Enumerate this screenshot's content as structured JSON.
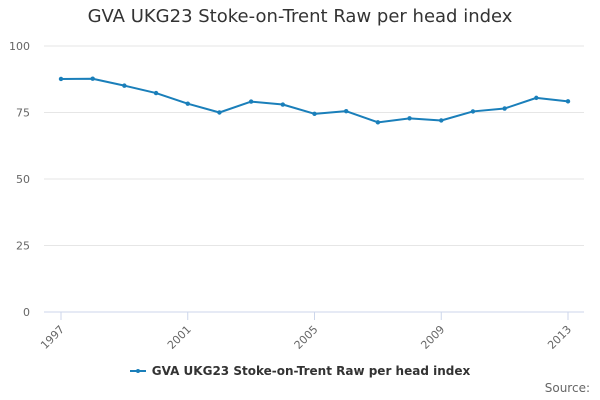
{
  "chart_data": {
    "type": "line",
    "title": "GVA UKG23 Stoke-on-Trent Raw per head index",
    "xlabel": "",
    "ylabel": "",
    "x": [
      1997,
      1998,
      1999,
      2000,
      2001,
      2002,
      2003,
      2004,
      2005,
      2006,
      2007,
      2008,
      2009,
      2010,
      2011,
      2012,
      2013
    ],
    "x_tick_labels": [
      "1997",
      "2001",
      "2005",
      "2009",
      "2013"
    ],
    "y_tick_labels": [
      "0",
      "25",
      "50",
      "75",
      "100"
    ],
    "ylim": [
      0,
      100
    ],
    "grid": true,
    "legend_position": "bottom",
    "series": [
      {
        "name": "GVA UKG23 Stoke-on-Trent Raw per head index",
        "color": "#1a7fba",
        "values": [
          87.6,
          87.7,
          85.1,
          82.3,
          78.3,
          75.0,
          79.1,
          78.0,
          74.5,
          75.5,
          71.3,
          72.8,
          72.0,
          75.4,
          76.5,
          80.5,
          79.2
        ]
      }
    ]
  },
  "credits": {
    "label": "Source:"
  }
}
